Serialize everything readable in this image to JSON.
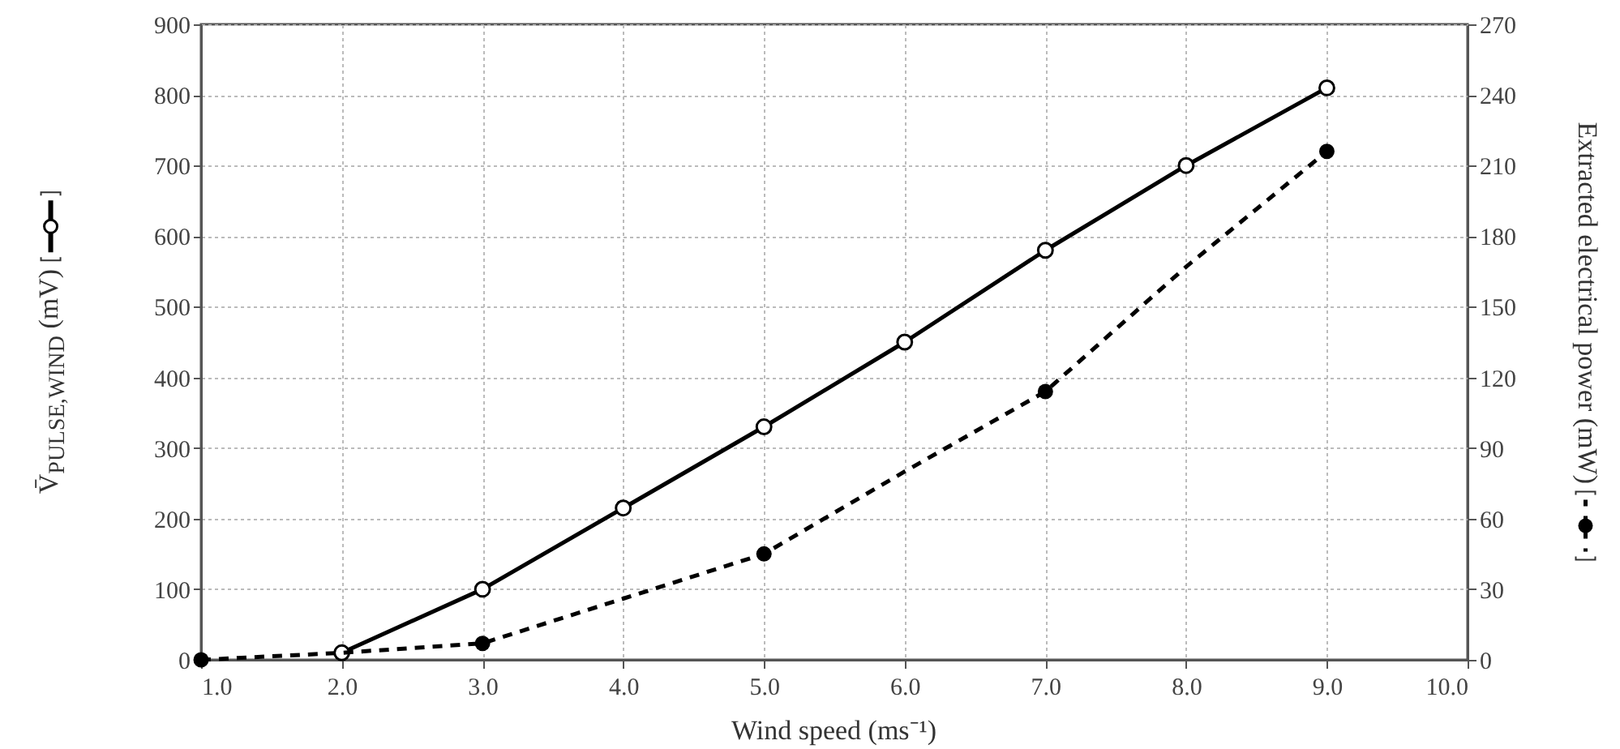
{
  "chart_data": {
    "type": "line",
    "xlabel": "Wind speed (ms⁻¹)",
    "ylabel": "V̄$_{PULSE,WIND}$ (mV)",
    "y2label": "Extracted electrical power (mW)",
    "x": [
      1,
      2,
      3,
      4,
      5,
      6,
      7,
      8,
      9
    ],
    "xlim": [
      1,
      10
    ],
    "xticks": [
      {
        "value": 1,
        "label": "1.0"
      },
      {
        "value": 2,
        "label": "2.0"
      },
      {
        "value": 3,
        "label": "3.0"
      },
      {
        "value": 4,
        "label": "4.0"
      },
      {
        "value": 5,
        "label": "5.0"
      },
      {
        "value": 6,
        "label": "6.0"
      },
      {
        "value": 7,
        "label": "7.0"
      },
      {
        "value": 8,
        "label": "8.0"
      },
      {
        "value": 9,
        "label": "9.0"
      },
      {
        "value": 10,
        "label": "10.0"
      }
    ],
    "ylim": [
      0,
      900
    ],
    "yticks": [
      0,
      100,
      200,
      300,
      400,
      500,
      600,
      700,
      800,
      900
    ],
    "y2lim": [
      0,
      270
    ],
    "y2ticks": [
      0,
      30,
      60,
      90,
      120,
      150,
      180,
      210,
      240,
      270
    ],
    "grid": true,
    "series": [
      {
        "color": "#000000",
        "marker": "circle",
        "line_style": "solid",
        "x": [
          2,
          3,
          4,
          5,
          6,
          7,
          8,
          9
        ],
        "values": [
          10,
          100,
          215,
          330,
          450,
          580,
          700,
          810
        ]
      },
      {
        "axis": "y2",
        "color": "#000000",
        "marker": "none",
        "line_style": "dashed",
        "values": [
          0,
          3,
          7,
          26,
          45,
          80,
          114,
          167,
          216
        ]
      },
      {
        "type": "scatter",
        "axis": "y2",
        "color": "#000000",
        "marker": "circle",
        "x": [
          1,
          3,
          5,
          7,
          9
        ],
        "values": [
          0,
          7,
          45,
          114,
          216
        ]
      }
    ]
  }
}
